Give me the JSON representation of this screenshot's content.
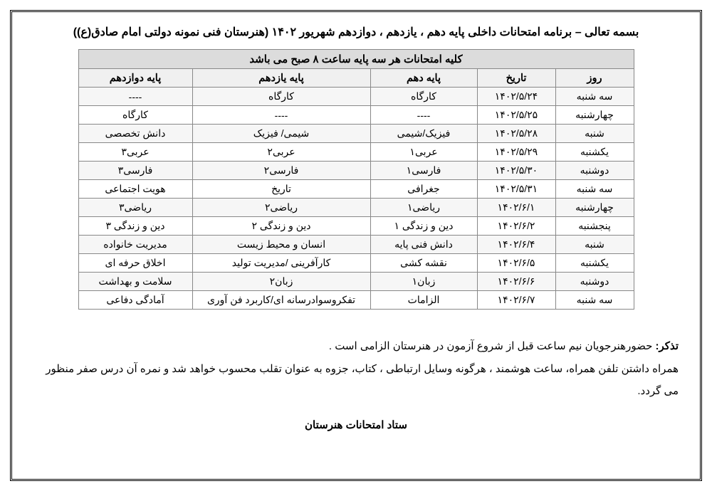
{
  "title": "بسمه تعالی – برنامه امتحانات داخلی پایه دهم ، یازدهم ، دوازدهم شهریور ۱۴۰۲ (هنرستان فنی نمونه دولتی امام صادق(ع))",
  "banner": "کلیه امتحانات هر سه پایه ساعت ۸ صبح می باشد",
  "columns": {
    "day": "روز",
    "date": "تاریخ",
    "g10": "پایه دهم",
    "g11": "پایه یازدهم",
    "g12": "پایه دوازدهم"
  },
  "rows": [
    {
      "day": "سه شنبه",
      "date": "۱۴۰۲/۵/۲۴",
      "g10": "کارگاه",
      "g11": "کارگاه",
      "g12": "----"
    },
    {
      "day": "چهارشنبه",
      "date": "۱۴۰۲/۵/۲۵",
      "g10": "----",
      "g11": "----",
      "g12": "کارگاه"
    },
    {
      "day": "شنبه",
      "date": "۱۴۰۲/۵/۲۸",
      "g10": "فیزیک/شیمی",
      "g11": "شیمی/ فیزیک",
      "g12": "دانش تخصصی"
    },
    {
      "day": "یکشنبه",
      "date": "۱۴۰۲/۵/۲۹",
      "g10": "عربی۱",
      "g11": "عربی۲",
      "g12": "عربی۳"
    },
    {
      "day": "دوشنبه",
      "date": "۱۴۰۲/۵/۳۰",
      "g10": "فارسی۱",
      "g11": "فارسی۲",
      "g12": "فارسی۳"
    },
    {
      "day": "سه شنبه",
      "date": "۱۴۰۲/۵/۳۱",
      "g10": "جغرافی",
      "g11": "تاریخ",
      "g12": "هویت اجتماعی"
    },
    {
      "day": "چهارشنبه",
      "date": "۱۴۰۲/۶/۱",
      "g10": "ریاضی۱",
      "g11": "ریاضی۲",
      "g12": "ریاضی۳"
    },
    {
      "day": "پنجشنبه",
      "date": "۱۴۰۲/۶/۲",
      "g10": "دین و زندگی ۱",
      "g11": "دین و زندگی ۲",
      "g12": "دین و زندگی ۳"
    },
    {
      "day": "شنبه",
      "date": "۱۴۰۲/۶/۴",
      "g10": "دانش فنی پایه",
      "g11": "انسان و محیط زیست",
      "g12": "مدیریت خانواده"
    },
    {
      "day": "یکشنبه",
      "date": "۱۴۰۲/۶/۵",
      "g10": "نقشه کشی",
      "g11": "کارآفرینی /مدیریت تولید",
      "g12": "اخلاق حرفه ای"
    },
    {
      "day": "دوشنبه",
      "date": "۱۴۰۲/۶/۶",
      "g10": "زبان۱",
      "g11": "زبان۲",
      "g12": "سلامت و بهداشت"
    },
    {
      "day": "سه شنبه",
      "date": "۱۴۰۲/۶/۷",
      "g10": "الزامات",
      "g11": "تفکروسوادرسانه ای/کاربرد فن آوری",
      "g12": "آمادگی دفاعی"
    }
  ],
  "note_label": "تذکر:",
  "note1": " حضورهنرجویان نیم ساعت قبل از شروع آزمون در هنرستان الزامی است .",
  "note2": "همراه داشتن تلفن همراه، ساعت هوشمند ، هرگونه وسایل ارتباطی ، کتاب، جزوه  به عنوان تقلب محسوب خواهد شد و نمره آن درس صفر منظور می گردد.",
  "signature": "ستاد امتحانات هنرستان"
}
